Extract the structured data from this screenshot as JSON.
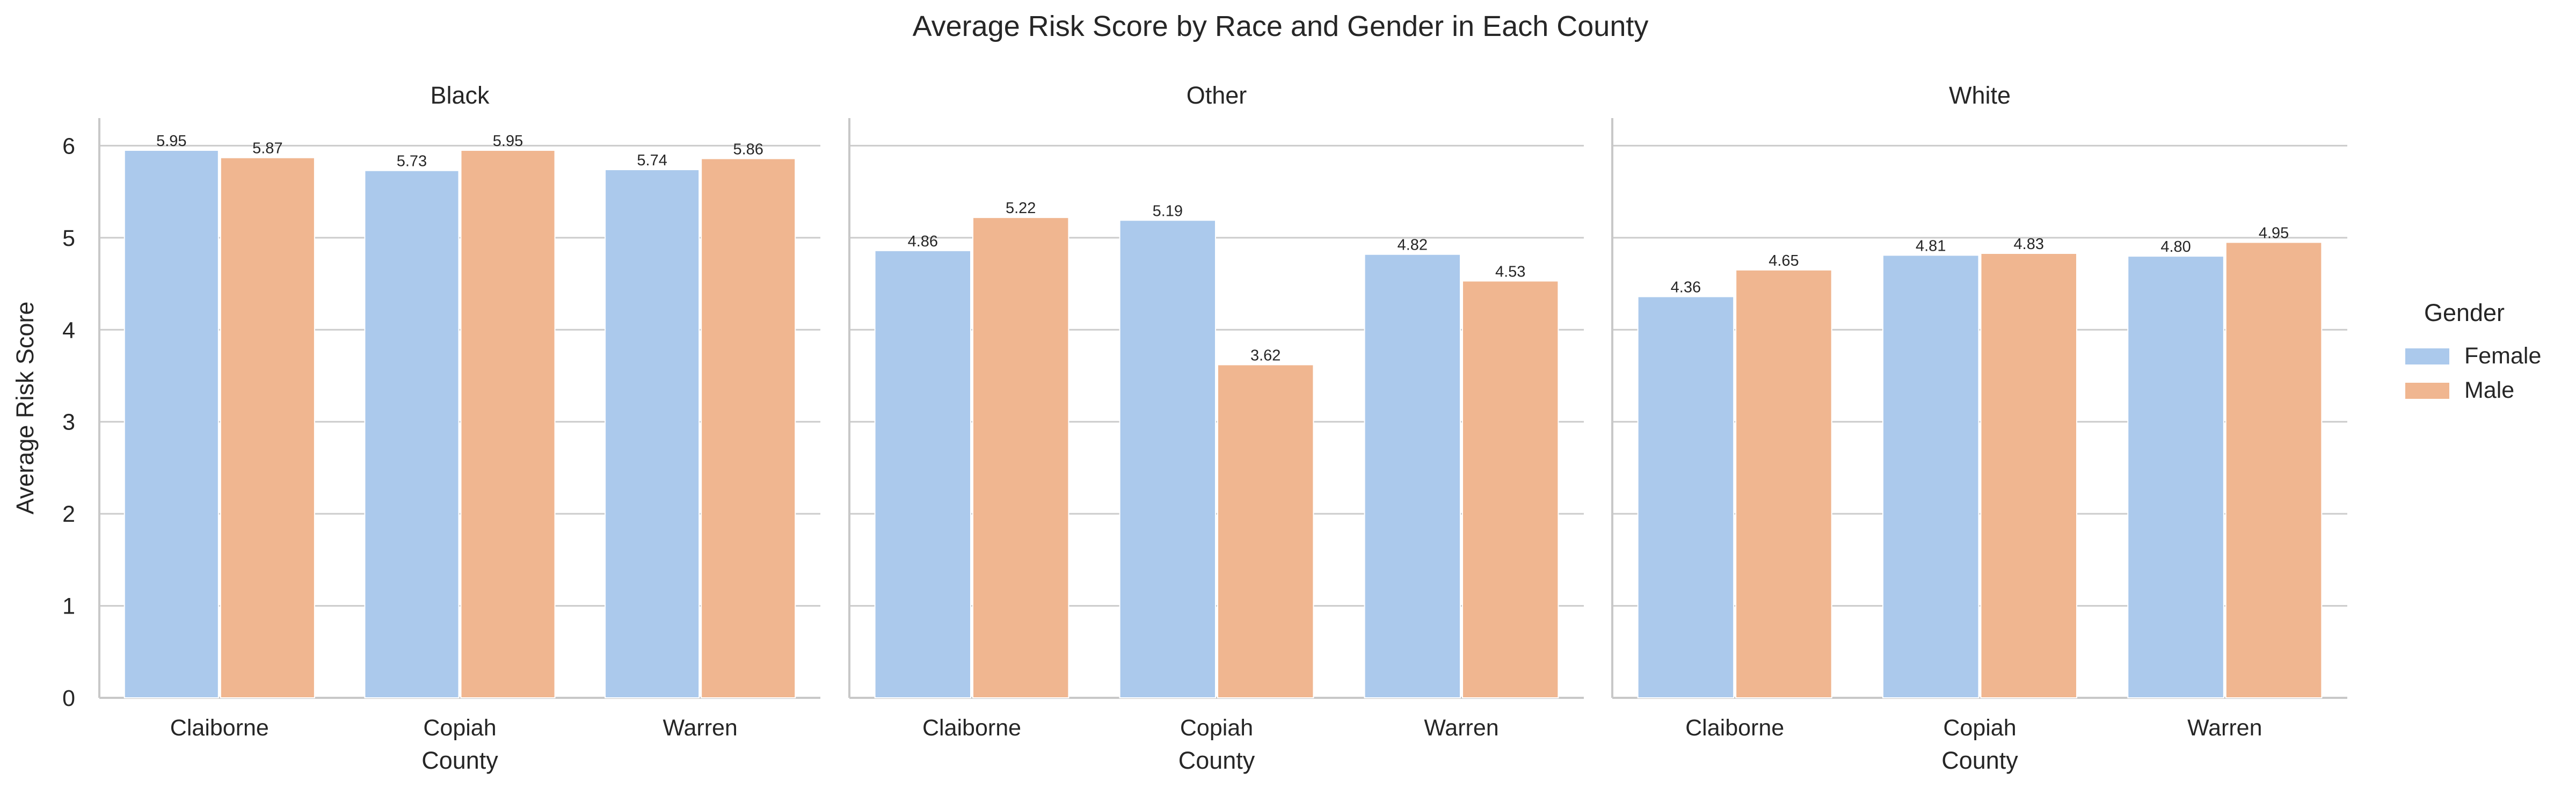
{
  "chart_data": {
    "type": "bar",
    "title": "Average Risk Score by Race and Gender in Each County",
    "ylabel": "Average Risk Score",
    "xlabel": "County",
    "ylim": [
      0,
      6.3
    ],
    "yticks": [
      "0",
      "1",
      "2",
      "3",
      "4",
      "5",
      "6"
    ],
    "grid": "horizontal",
    "legend": {
      "title": "Gender",
      "placement": "right"
    },
    "categories": [
      "Claiborne",
      "Copiah",
      "Warren"
    ],
    "series_names": [
      "Female",
      "Male"
    ],
    "colors": {
      "Female": "#abc9ec",
      "Male": "#f0b690"
    },
    "panels": [
      {
        "title": "Black",
        "series": [
          {
            "name": "Female",
            "values": [
              5.95,
              5.73,
              5.74
            ],
            "labels": [
              "5.95",
              "5.73",
              "5.74"
            ]
          },
          {
            "name": "Male",
            "values": [
              5.87,
              5.95,
              5.86
            ],
            "labels": [
              "5.87",
              "5.95",
              "5.86"
            ]
          }
        ]
      },
      {
        "title": "Other",
        "series": [
          {
            "name": "Female",
            "values": [
              4.86,
              5.19,
              4.82
            ],
            "labels": [
              "4.86",
              "5.19",
              "4.82"
            ]
          },
          {
            "name": "Male",
            "values": [
              5.22,
              3.62,
              4.53
            ],
            "labels": [
              "5.22",
              "3.62",
              "4.53"
            ]
          }
        ]
      },
      {
        "title": "White",
        "series": [
          {
            "name": "Female",
            "values": [
              4.36,
              4.81,
              4.8
            ],
            "labels": [
              "4.36",
              "4.81",
              "4.80"
            ]
          },
          {
            "name": "Male",
            "values": [
              4.65,
              4.83,
              4.95
            ],
            "labels": [
              "4.65",
              "4.83",
              "4.95"
            ]
          }
        ]
      }
    ]
  }
}
